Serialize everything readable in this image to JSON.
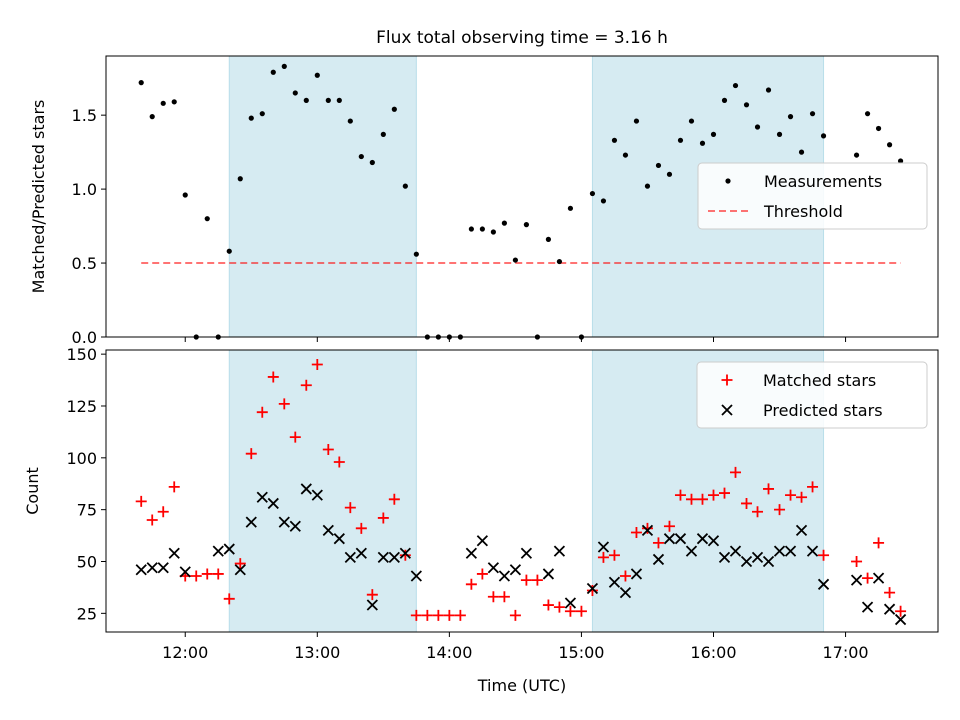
{
  "title": "Flux total observing time = 3.16 h",
  "colors": {
    "shade": "#add8e6",
    "measurement": "#000000",
    "threshold": "#ff0000",
    "matched": "#ff0000",
    "predicted": "#000000"
  },
  "chart_data": [
    {
      "type": "scatter",
      "ylabel": "Matched/Predicted stars",
      "ylim": [
        0,
        1.9
      ],
      "yticks": [
        0.0,
        0.5,
        1.0,
        1.5
      ],
      "ytick_labels": [
        "0.0",
        "0.5",
        "1.0",
        "1.5"
      ],
      "xlim_hours": [
        11.4,
        17.7
      ],
      "shaded_intervals": [
        [
          "12:20",
          "13:45"
        ],
        [
          "15:05",
          "16:50"
        ]
      ],
      "legend": {
        "position": "center right",
        "entries": [
          "Measurements",
          "Threshold"
        ]
      },
      "threshold": {
        "name": "Threshold",
        "value": 0.5,
        "x_start": "11:40",
        "x_end": "17:25",
        "style": "dashed"
      },
      "series": [
        {
          "name": "Measurements",
          "points": [
            [
              "11:40",
              1.72
            ],
            [
              "11:45",
              1.49
            ],
            [
              "11:50",
              1.58
            ],
            [
              "11:55",
              1.59
            ],
            [
              "12:00",
              0.96
            ],
            [
              "12:05",
              0.0
            ],
            [
              "12:10",
              0.8
            ],
            [
              "12:15",
              0.0
            ],
            [
              "12:20",
              0.58
            ],
            [
              "12:25",
              1.07
            ],
            [
              "12:30",
              1.48
            ],
            [
              "12:35",
              1.51
            ],
            [
              "12:40",
              1.79
            ],
            [
              "12:45",
              1.83
            ],
            [
              "12:50",
              1.65
            ],
            [
              "12:55",
              1.6
            ],
            [
              "13:00",
              1.77
            ],
            [
              "13:05",
              1.6
            ],
            [
              "13:10",
              1.6
            ],
            [
              "13:15",
              1.46
            ],
            [
              "13:20",
              1.22
            ],
            [
              "13:25",
              1.18
            ],
            [
              "13:30",
              1.37
            ],
            [
              "13:35",
              1.54
            ],
            [
              "13:40",
              1.02
            ],
            [
              "13:45",
              0.56
            ],
            [
              "13:50",
              0.0
            ],
            [
              "13:55",
              0.0
            ],
            [
              "14:00",
              0.0
            ],
            [
              "14:05",
              0.0
            ],
            [
              "14:10",
              0.73
            ],
            [
              "14:15",
              0.73
            ],
            [
              "14:20",
              0.71
            ],
            [
              "14:25",
              0.77
            ],
            [
              "14:30",
              0.52
            ],
            [
              "14:35",
              0.76
            ],
            [
              "14:40",
              0.0
            ],
            [
              "14:45",
              0.66
            ],
            [
              "14:50",
              0.51
            ],
            [
              "14:55",
              0.87
            ],
            [
              "15:00",
              0.0
            ],
            [
              "15:05",
              0.97
            ],
            [
              "15:10",
              0.92
            ],
            [
              "15:15",
              1.33
            ],
            [
              "15:20",
              1.23
            ],
            [
              "15:25",
              1.46
            ],
            [
              "15:30",
              1.02
            ],
            [
              "15:35",
              1.16
            ],
            [
              "15:40",
              1.1
            ],
            [
              "15:45",
              1.33
            ],
            [
              "15:50",
              1.46
            ],
            [
              "15:55",
              1.31
            ],
            [
              "16:00",
              1.37
            ],
            [
              "16:05",
              1.6
            ],
            [
              "16:10",
              1.7
            ],
            [
              "16:15",
              1.57
            ],
            [
              "16:20",
              1.42
            ],
            [
              "16:25",
              1.67
            ],
            [
              "16:30",
              1.37
            ],
            [
              "16:35",
              1.49
            ],
            [
              "16:40",
              1.25
            ],
            [
              "16:45",
              1.51
            ],
            [
              "16:50",
              1.36
            ],
            [
              "17:05",
              1.23
            ],
            [
              "17:10",
              1.51
            ],
            [
              "17:15",
              1.41
            ],
            [
              "17:20",
              1.3
            ],
            [
              "17:25",
              1.19
            ]
          ]
        }
      ]
    },
    {
      "type": "scatter",
      "xlabel": "Time (UTC)",
      "ylabel": "Count",
      "ylim": [
        16,
        152
      ],
      "yticks": [
        25,
        50,
        75,
        100,
        125,
        150
      ],
      "ytick_labels": [
        "25",
        "50",
        "75",
        "100",
        "125",
        "150"
      ],
      "xlim_hours": [
        11.4,
        17.7
      ],
      "xticks": [
        "12:00",
        "13:00",
        "14:00",
        "15:00",
        "16:00",
        "17:00"
      ],
      "shaded_intervals": [
        [
          "12:20",
          "13:45"
        ],
        [
          "15:05",
          "16:50"
        ]
      ],
      "legend": {
        "position": "top right",
        "entries": [
          "Matched stars",
          "Predicted stars"
        ]
      },
      "series": [
        {
          "name": "Matched stars",
          "marker": "plus",
          "points": [
            [
              "11:40",
              79
            ],
            [
              "11:45",
              70
            ],
            [
              "11:50",
              74
            ],
            [
              "11:55",
              86
            ],
            [
              "12:00",
              43
            ],
            [
              "12:05",
              43
            ],
            [
              "12:10",
              44
            ],
            [
              "12:15",
              44
            ],
            [
              "12:20",
              32
            ],
            [
              "12:25",
              49
            ],
            [
              "12:30",
              102
            ],
            [
              "12:35",
              122
            ],
            [
              "12:40",
              139
            ],
            [
              "12:45",
              126
            ],
            [
              "12:50",
              110
            ],
            [
              "12:55",
              135
            ],
            [
              "13:00",
              145
            ],
            [
              "13:05",
              104
            ],
            [
              "13:10",
              98
            ],
            [
              "13:15",
              76
            ],
            [
              "13:20",
              66
            ],
            [
              "13:25",
              34
            ],
            [
              "13:30",
              71
            ],
            [
              "13:35",
              80
            ],
            [
              "13:40",
              53
            ],
            [
              "13:45",
              24
            ],
            [
              "13:50",
              24
            ],
            [
              "13:55",
              24
            ],
            [
              "14:00",
              24
            ],
            [
              "14:05",
              24
            ],
            [
              "14:10",
              39
            ],
            [
              "14:15",
              44
            ],
            [
              "14:20",
              33
            ],
            [
              "14:25",
              33
            ],
            [
              "14:30",
              24
            ],
            [
              "14:35",
              41
            ],
            [
              "14:40",
              41
            ],
            [
              "14:45",
              29
            ],
            [
              "14:50",
              28
            ],
            [
              "14:55",
              26
            ],
            [
              "15:00",
              26
            ],
            [
              "15:05",
              36
            ],
            [
              "15:10",
              52
            ],
            [
              "15:15",
              53
            ],
            [
              "15:20",
              43
            ],
            [
              "15:25",
              64
            ],
            [
              "15:30",
              66
            ],
            [
              "15:35",
              59
            ],
            [
              "15:40",
              67
            ],
            [
              "15:45",
              82
            ],
            [
              "15:50",
              80
            ],
            [
              "15:55",
              80
            ],
            [
              "16:00",
              82
            ],
            [
              "16:05",
              83
            ],
            [
              "16:10",
              93
            ],
            [
              "16:15",
              78
            ],
            [
              "16:20",
              74
            ],
            [
              "16:25",
              85
            ],
            [
              "16:30",
              75
            ],
            [
              "16:35",
              82
            ],
            [
              "16:40",
              81
            ],
            [
              "16:45",
              86
            ],
            [
              "16:50",
              53
            ],
            [
              "17:05",
              50
            ],
            [
              "17:10",
              42
            ],
            [
              "17:15",
              59
            ],
            [
              "17:20",
              35
            ],
            [
              "17:25",
              26
            ]
          ]
        },
        {
          "name": "Predicted stars",
          "marker": "x",
          "points": [
            [
              "11:40",
              46
            ],
            [
              "11:45",
              47
            ],
            [
              "11:50",
              47
            ],
            [
              "11:55",
              54
            ],
            [
              "12:00",
              45
            ],
            [
              "12:15",
              55
            ],
            [
              "12:20",
              56
            ],
            [
              "12:25",
              46
            ],
            [
              "12:30",
              69
            ],
            [
              "12:35",
              81
            ],
            [
              "12:40",
              78
            ],
            [
              "12:45",
              69
            ],
            [
              "12:50",
              67
            ],
            [
              "12:55",
              85
            ],
            [
              "13:00",
              82
            ],
            [
              "13:05",
              65
            ],
            [
              "13:10",
              61
            ],
            [
              "13:15",
              52
            ],
            [
              "13:20",
              54
            ],
            [
              "13:25",
              29
            ],
            [
              "13:30",
              52
            ],
            [
              "13:35",
              52
            ],
            [
              "13:40",
              54
            ],
            [
              "13:45",
              43
            ],
            [
              "14:10",
              54
            ],
            [
              "14:15",
              60
            ],
            [
              "14:20",
              47
            ],
            [
              "14:25",
              43
            ],
            [
              "14:30",
              46
            ],
            [
              "14:35",
              54
            ],
            [
              "14:45",
              44
            ],
            [
              "14:50",
              55
            ],
            [
              "14:55",
              30
            ],
            [
              "15:05",
              37
            ],
            [
              "15:10",
              57
            ],
            [
              "15:15",
              40
            ],
            [
              "15:20",
              35
            ],
            [
              "15:25",
              44
            ],
            [
              "15:30",
              65
            ],
            [
              "15:35",
              51
            ],
            [
              "15:40",
              61
            ],
            [
              "15:45",
              61
            ],
            [
              "15:50",
              55
            ],
            [
              "15:55",
              61
            ],
            [
              "16:00",
              60
            ],
            [
              "16:05",
              52
            ],
            [
              "16:10",
              55
            ],
            [
              "16:15",
              50
            ],
            [
              "16:20",
              52
            ],
            [
              "16:25",
              50
            ],
            [
              "16:30",
              55
            ],
            [
              "16:35",
              55
            ],
            [
              "16:40",
              65
            ],
            [
              "16:45",
              55
            ],
            [
              "16:50",
              39
            ],
            [
              "17:05",
              41
            ],
            [
              "17:10",
              28
            ],
            [
              "17:15",
              42
            ],
            [
              "17:20",
              27
            ],
            [
              "17:25",
              22
            ]
          ]
        }
      ]
    }
  ]
}
